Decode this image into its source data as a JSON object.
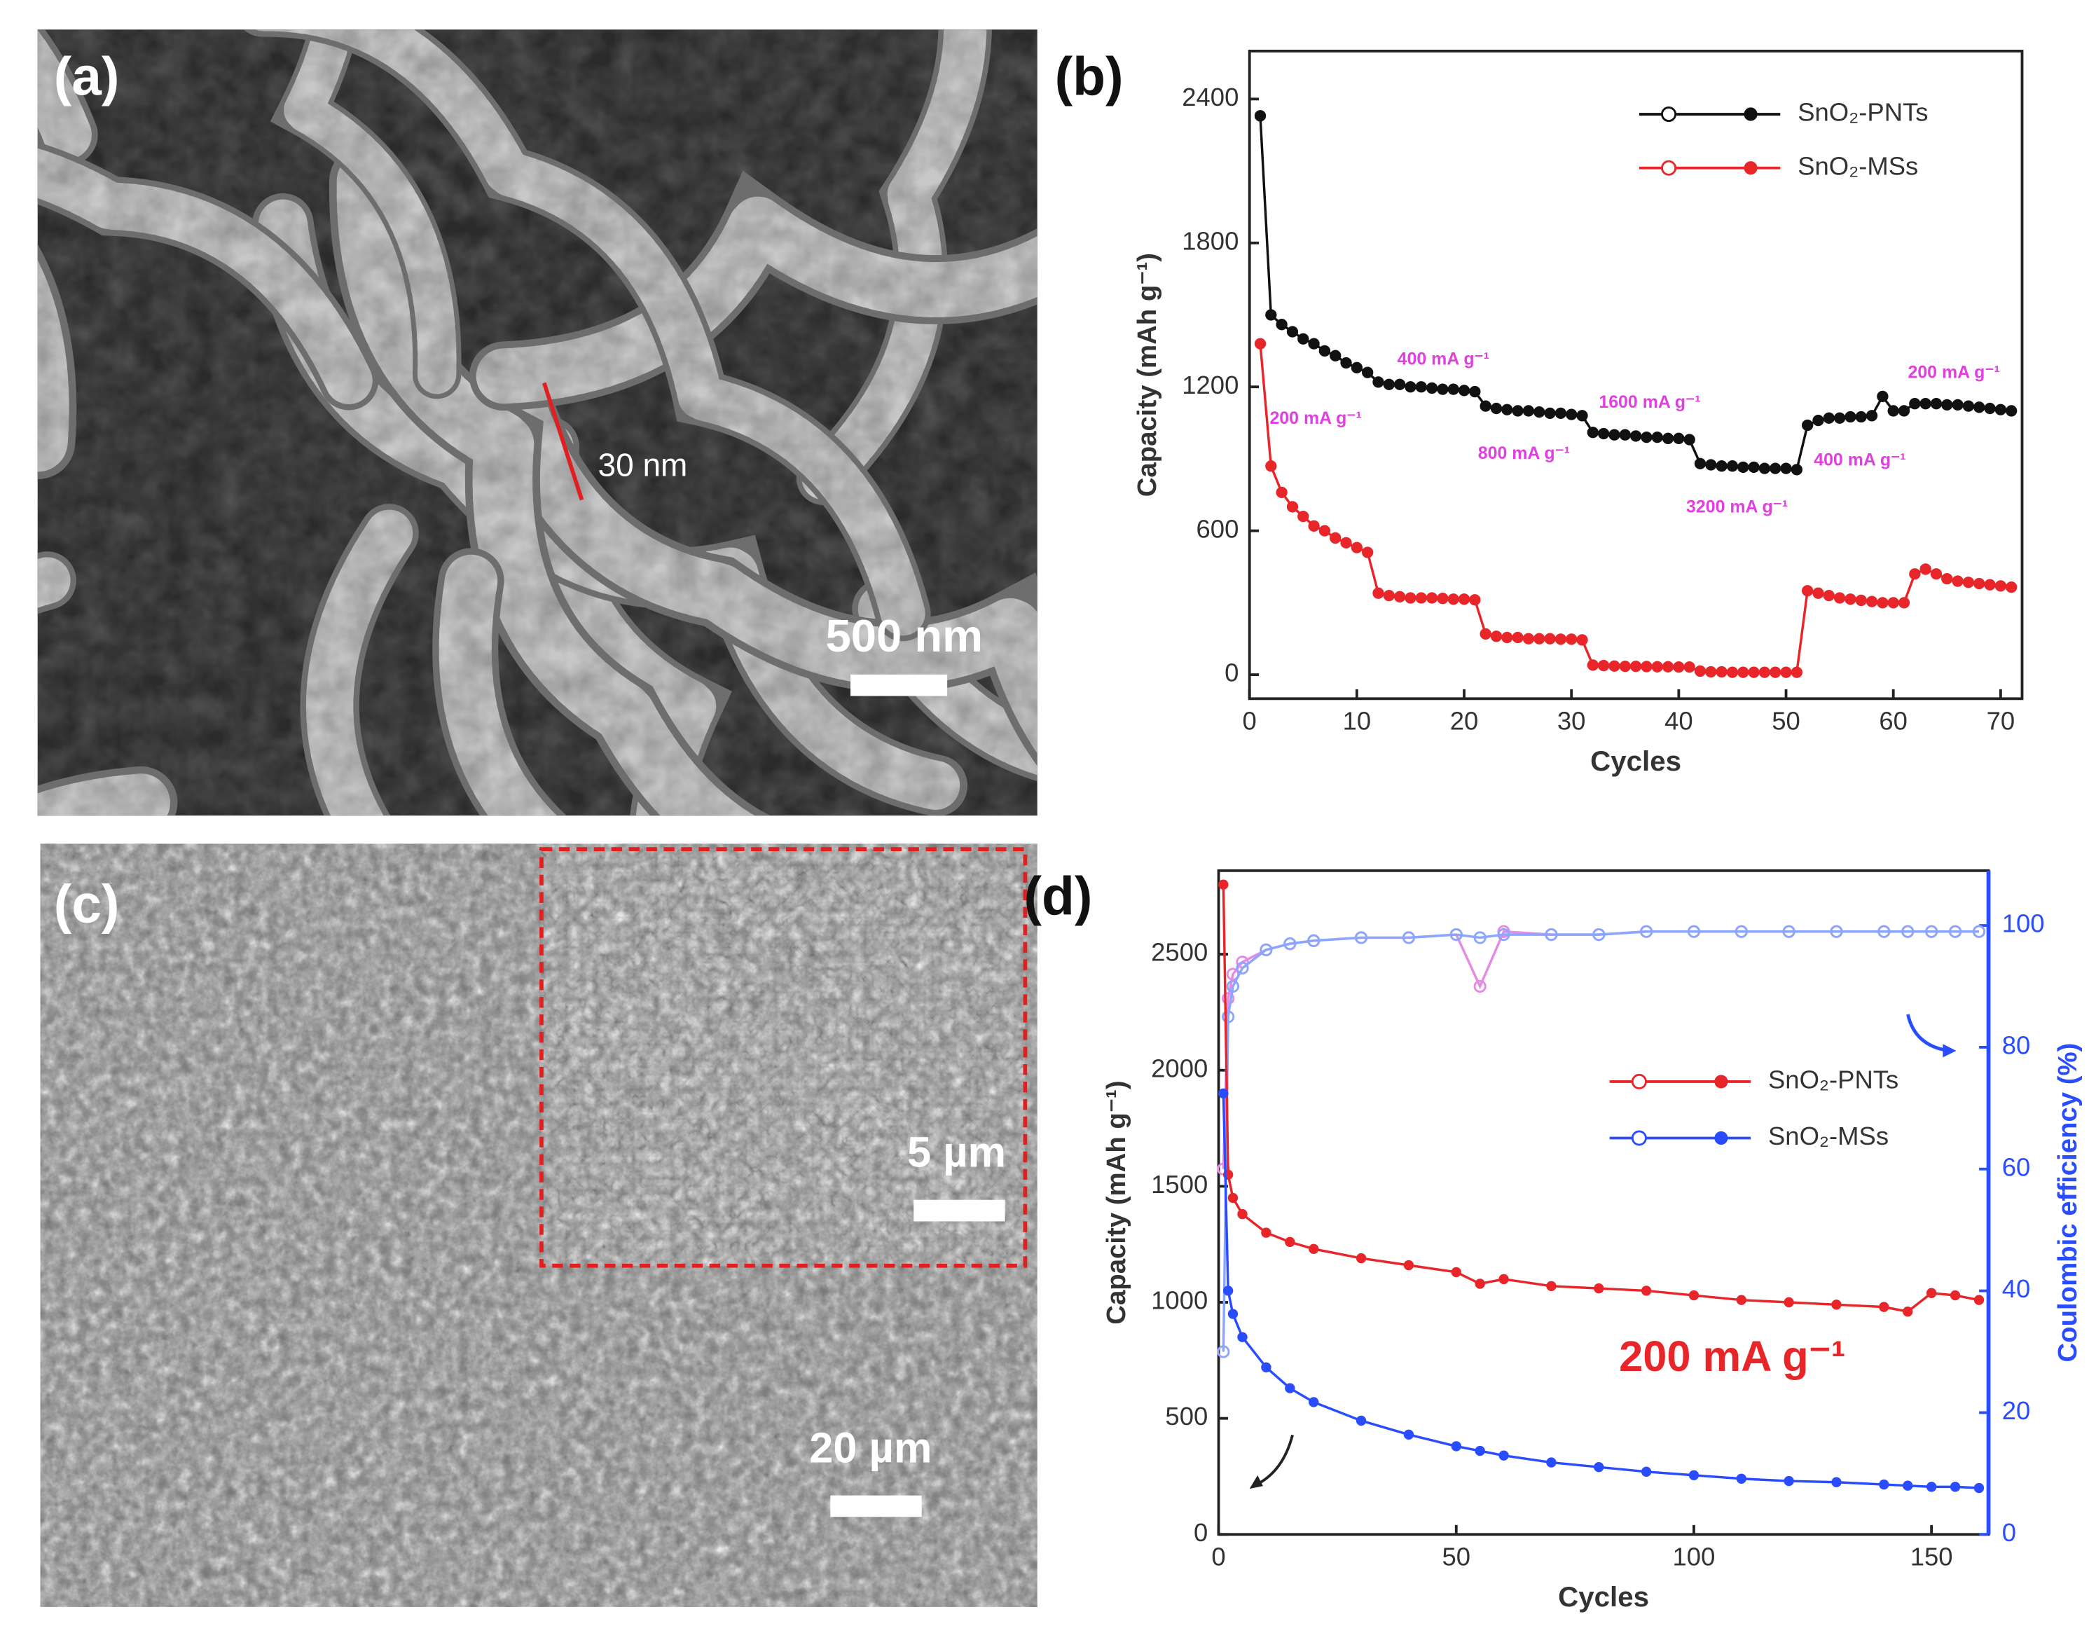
{
  "panels": [
    {
      "label": "(a)",
      "annotation": "30 nm",
      "scale_bar": "500 nm"
    },
    {
      "label": "(c)",
      "inset_scale_bar": "5 µm",
      "scale_bar": "20 µm"
    }
  ],
  "chart_data": [
    {
      "type": "line",
      "label": "(b)",
      "xlabel": "Cycles",
      "ylabel": "Capacity (mAh g⁻¹)",
      "xlim": [
        0,
        72
      ],
      "xticks": [
        0,
        10,
        20,
        30,
        40,
        50,
        60,
        70
      ],
      "ylim": [
        -100,
        2600
      ],
      "yticks": [
        0,
        600,
        1200,
        1800,
        2400
      ],
      "x": [
        1,
        2,
        3,
        4,
        5,
        6,
        7,
        8,
        9,
        10,
        11,
        12,
        13,
        14,
        15,
        16,
        17,
        18,
        19,
        20,
        21,
        22,
        23,
        24,
        25,
        26,
        27,
        28,
        29,
        30,
        31,
        32,
        33,
        34,
        35,
        36,
        37,
        38,
        39,
        40,
        41,
        42,
        43,
        44,
        45,
        46,
        47,
        48,
        49,
        50,
        51,
        52,
        53,
        54,
        55,
        56,
        57,
        58,
        59,
        60,
        61,
        62,
        63,
        64,
        65,
        66,
        67,
        68,
        69,
        70,
        71
      ],
      "series": [
        {
          "name": "SnO₂-PNTs",
          "color": "#111111",
          "values": [
            2330,
            1500,
            1460,
            1430,
            1400,
            1380,
            1350,
            1330,
            1300,
            1280,
            1260,
            1220,
            1210,
            1210,
            1200,
            1200,
            1195,
            1190,
            1190,
            1185,
            1180,
            1120,
            1110,
            1105,
            1100,
            1100,
            1095,
            1090,
            1090,
            1085,
            1080,
            1010,
            1005,
            1000,
            1000,
            995,
            990,
            990,
            985,
            985,
            980,
            880,
            875,
            870,
            870,
            865,
            865,
            860,
            860,
            860,
            855,
            1040,
            1060,
            1070,
            1070,
            1075,
            1075,
            1080,
            1160,
            1100,
            1100,
            1130,
            1130,
            1130,
            1125,
            1125,
            1120,
            1115,
            1110,
            1105,
            1100
          ]
        },
        {
          "name": "SnO₂-MSs",
          "color": "#e8262a",
          "values": [
            1380,
            870,
            760,
            700,
            660,
            620,
            600,
            570,
            550,
            530,
            510,
            340,
            330,
            325,
            320,
            320,
            320,
            318,
            315,
            315,
            312,
            170,
            160,
            155,
            155,
            150,
            150,
            150,
            148,
            148,
            145,
            40,
            38,
            36,
            35,
            35,
            34,
            33,
            33,
            32,
            32,
            15,
            12,
            12,
            10,
            10,
            10,
            10,
            10,
            10,
            10,
            350,
            340,
            330,
            320,
            315,
            310,
            305,
            300,
            300,
            300,
            420,
            440,
            420,
            400,
            390,
            385,
            380,
            375,
            370,
            365
          ]
        }
      ],
      "annotations": [
        {
          "text": "400 mA g⁻¹",
          "color": "#e040e0"
        },
        {
          "text": "200 mA g⁻¹",
          "color": "#e040e0"
        },
        {
          "text": "800 mA g⁻¹",
          "color": "#e040e0"
        },
        {
          "text": "1600 mA g⁻¹",
          "color": "#e040e0"
        },
        {
          "text": "3200 mA g⁻¹",
          "color": "#e040e0"
        },
        {
          "text": "400 mA g⁻¹",
          "color": "#e040e0"
        },
        {
          "text": "200 mA g⁻¹",
          "color": "#e040e0"
        }
      ]
    },
    {
      "type": "line",
      "label": "(d)",
      "xlabel": "Cycles",
      "ylabel": "Capacity (mAh g⁻¹)",
      "y2label": "Coulombic efficiency (%)",
      "xlim": [
        0,
        162
      ],
      "xticks": [
        0,
        50,
        100,
        150
      ],
      "ylim": [
        0,
        2860
      ],
      "yticks": [
        0,
        500,
        1000,
        1500,
        2000,
        2500
      ],
      "y2lim": [
        0,
        109
      ],
      "y2ticks": [
        0,
        20,
        40,
        60,
        80,
        100
      ],
      "y2color": "#2a4cff",
      "x": [
        1,
        2,
        3,
        5,
        10,
        15,
        20,
        30,
        40,
        50,
        55,
        60,
        70,
        80,
        90,
        100,
        110,
        120,
        130,
        140,
        145,
        150,
        155,
        160
      ],
      "series": [
        {
          "name": "SnO₂-PNTs",
          "color": "#e8262a",
          "values": [
            2800,
            1550,
            1450,
            1380,
            1300,
            1260,
            1230,
            1190,
            1160,
            1130,
            1080,
            1100,
            1070,
            1060,
            1050,
            1030,
            1010,
            1000,
            990,
            980,
            960,
            1040,
            1030,
            1010
          ]
        },
        {
          "name": "SnO₂-MSs",
          "color": "#2a4cff",
          "values": [
            1900,
            1050,
            950,
            850,
            720,
            630,
            570,
            490,
            430,
            380,
            360,
            340,
            310,
            290,
            270,
            255,
            240,
            230,
            225,
            215,
            210,
            205,
            205,
            200
          ]
        }
      ],
      "y2_series": [
        {
          "axis": "y2",
          "color": "#e58ae5",
          "values": [
            60,
            88,
            92,
            94,
            96,
            97,
            97.5,
            98,
            98,
            98.5,
            90,
            99,
            98.5,
            98.5,
            99,
            99,
            99,
            99,
            99,
            99,
            99,
            99,
            99,
            99
          ]
        },
        {
          "axis": "y2",
          "color": "#8aa6ff",
          "values": [
            30,
            85,
            90,
            93,
            96,
            97,
            97.5,
            98,
            98,
            98.5,
            98,
            98.5,
            98.5,
            98.5,
            99,
            99,
            99,
            99,
            99,
            99,
            99,
            99,
            99,
            99
          ]
        }
      ],
      "annotations": [
        {
          "text": "200 mA g⁻¹",
          "color": "#e8262a"
        }
      ]
    }
  ]
}
